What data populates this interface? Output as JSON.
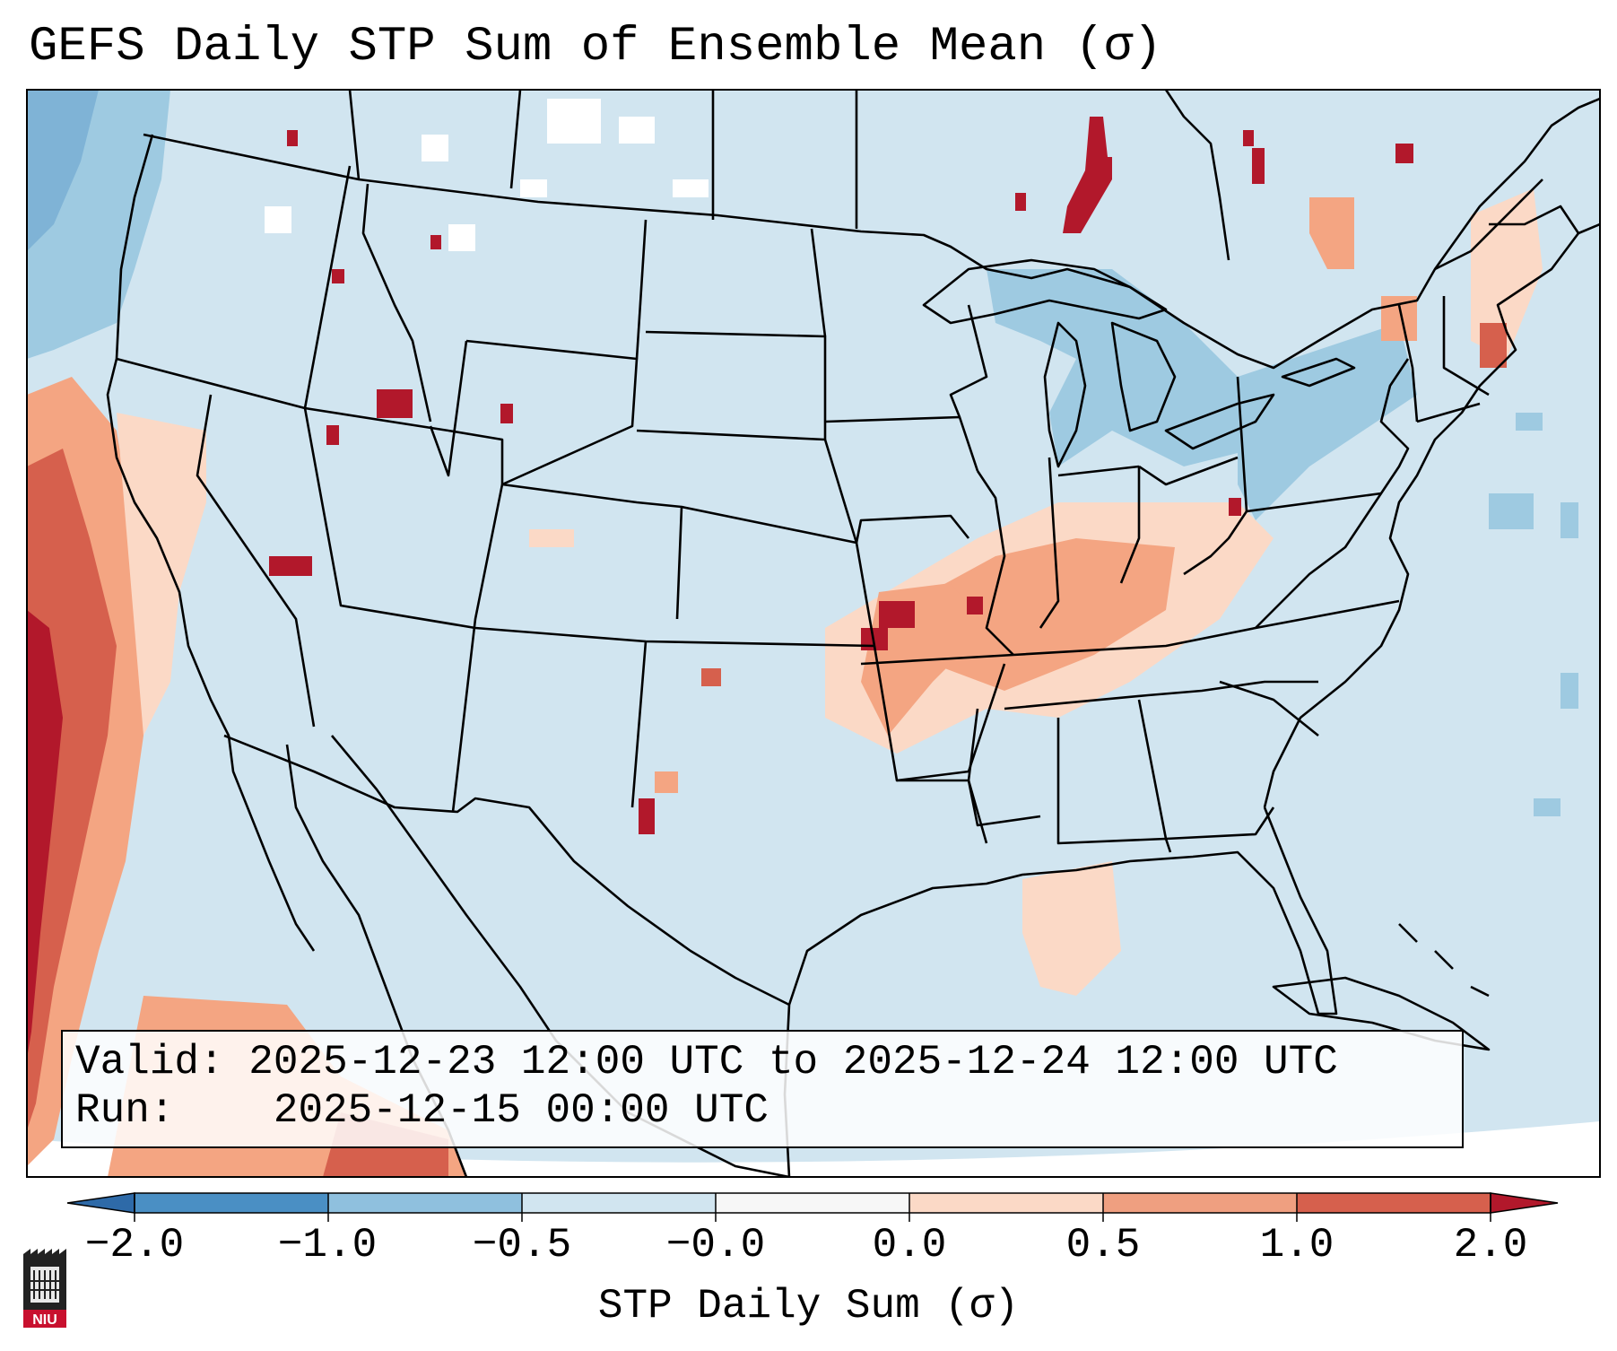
{
  "title": "GEFS Daily STP Sum of Ensemble Mean (σ)",
  "info": {
    "valid_label": "Valid:",
    "valid_value": "2025-12-23 12:00 UTC to 2025-12-24 12:00 UTC",
    "run_label": "Run:",
    "run_value": "2025-12-15 00:00 UTC"
  },
  "colorbar": {
    "label": "STP Daily Sum (σ)",
    "ticks": [
      "−2.0",
      "−1.0",
      "−0.5",
      "−0.0",
      "0.0",
      "0.5",
      "1.0",
      "2.0"
    ],
    "colors": [
      "#4a8fc4",
      "#8fc0de",
      "#d1e5f0",
      "#f7f7f7",
      "#fbd9c6",
      "#ef9f80",
      "#d6604d",
      "#b2182b"
    ],
    "extend_low_color": "#2e6aa8",
    "extend_high_color": "#b2182b"
  },
  "colors": {
    "background_field": "#d1e5f0",
    "light_blue": "#9ecae1",
    "white": "#ffffff",
    "peach": "#fbd9c6",
    "salmon": "#f4a582",
    "red": "#d6604d",
    "dark_red": "#b2182b"
  },
  "logo": {
    "text": "NIU"
  }
}
